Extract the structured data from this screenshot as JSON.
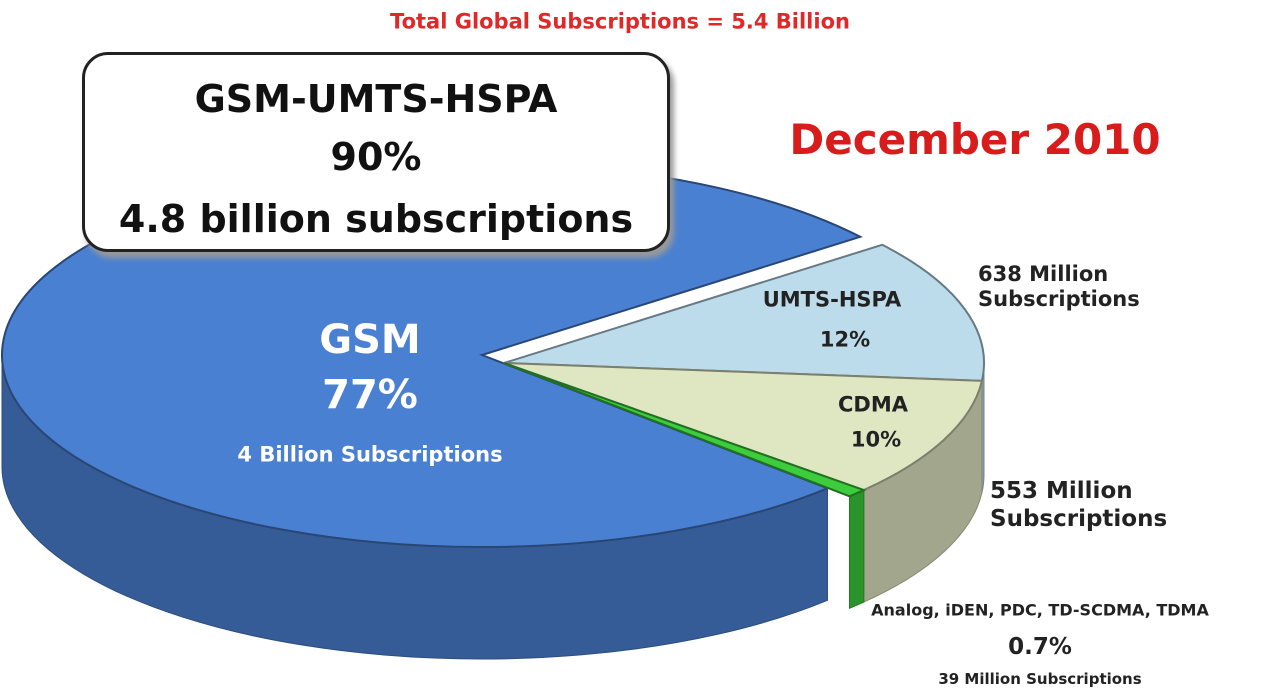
{
  "chart_data": {
    "type": "pie",
    "title": "Total Global Subscriptions = 5.4 Billion",
    "subtitle": "December 2010",
    "categories": [
      "GSM",
      "UMTS-HSPA",
      "CDMA",
      "Analog, iDEN, PDC, TD-SCDMA, TDMA"
    ],
    "values": [
      77,
      12,
      10,
      0.7
    ],
    "value_labels": [
      "77%",
      "12%",
      "10%",
      "0.7%"
    ],
    "colors": [
      "#4a80d2",
      "#bcdcec",
      "#dfe6c2",
      "#3ccc3c"
    ],
    "subscriptions": [
      "4 Billion Subscriptions",
      "638 Million Subscriptions",
      "553 Million Subscriptions",
      "39 Million Subscriptions"
    ],
    "callout": {
      "title": "GSM-UMTS-HSPA",
      "value": "90%",
      "text": "4.8 billion subscriptions"
    }
  }
}
